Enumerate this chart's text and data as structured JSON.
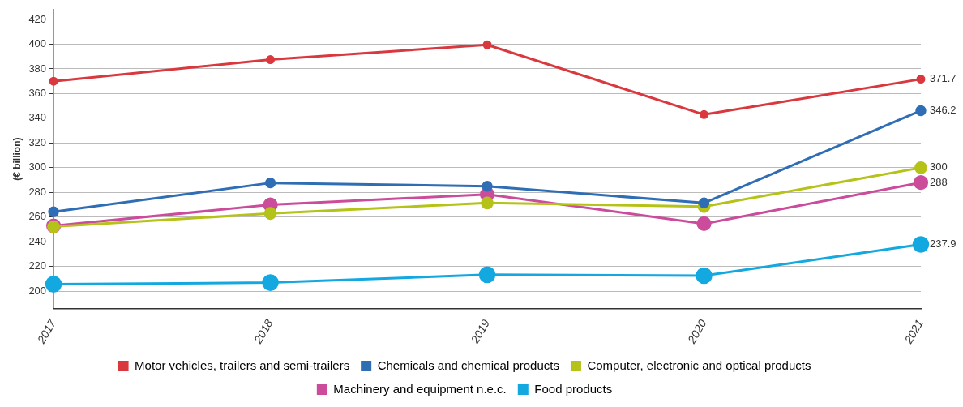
{
  "chart_data": {
    "type": "line",
    "ylabel": "(€ billion)",
    "categories": [
      "2017",
      "2018",
      "2019",
      "2020",
      "2021"
    ],
    "ylim": [
      186,
      428
    ],
    "yticks": [
      200,
      220,
      240,
      260,
      280,
      300,
      320,
      340,
      360,
      380,
      400,
      420
    ],
    "grid": "y",
    "legend": "bottom",
    "marker": "circle",
    "series": [
      {
        "name": "Motor vehicles, trailers and semi-trailers",
        "color": "#d9393e",
        "values": [
          370,
          387.5,
          399.5,
          343,
          371.7
        ],
        "value_labels": [
          null,
          null,
          null,
          null,
          "371.7"
        ]
      },
      {
        "name": "Chemicals and chemical products",
        "color": "#2f6db5",
        "values": [
          264.4,
          287.7,
          285,
          271.5,
          346.2
        ],
        "value_labels": [
          null,
          null,
          null,
          null,
          "346.2"
        ]
      },
      {
        "name": "Computer, electronic and optical products",
        "color": "#b5c217",
        "values": [
          252.3,
          263,
          271.5,
          268.6,
          300
        ],
        "value_labels": [
          null,
          null,
          null,
          null,
          "300"
        ]
      },
      {
        "name": "Machinery and equipment n.e.c.",
        "color": "#cc4c9c",
        "values": [
          253,
          270,
          278.5,
          254.7,
          288
        ],
        "value_labels": [
          null,
          null,
          null,
          null,
          "288"
        ]
      },
      {
        "name": "Food products",
        "color": "#14a8e0",
        "values": [
          205.7,
          207,
          213.4,
          212.7,
          237.9
        ],
        "value_labels": [
          null,
          null,
          null,
          null,
          "237.9"
        ]
      }
    ]
  }
}
